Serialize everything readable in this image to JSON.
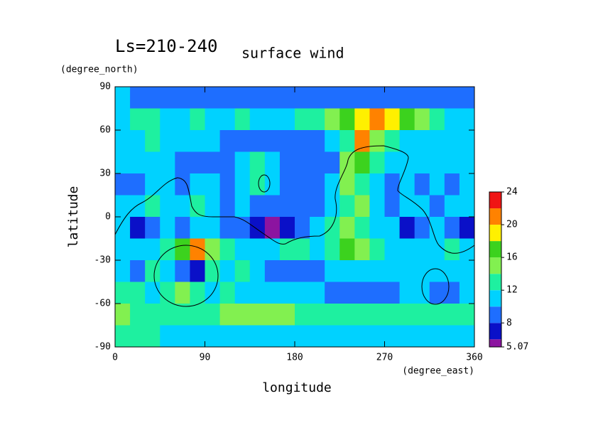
{
  "chart_data": {
    "type": "contourf",
    "title": "Ls=210-240",
    "subtitle": "surface wind",
    "xlabel": "longitude",
    "ylabel": "latitude",
    "x_unit": "(degree_east)",
    "y_unit": "(degree_north)",
    "xlim": [
      0,
      360
    ],
    "ylim": [
      -90,
      90
    ],
    "xticks": [
      0,
      90,
      180,
      270,
      360
    ],
    "yticks": [
      90,
      60,
      30,
      0,
      -30,
      -60,
      -90
    ],
    "x": [
      7.5,
      22.5,
      37.5,
      52.5,
      67.5,
      82.5,
      97.5,
      112.5,
      127.5,
      142.5,
      157.5,
      172.5,
      187.5,
      202.5,
      217.5,
      232.5,
      247.5,
      262.5,
      277.5,
      292.5,
      307.5,
      322.5,
      337.5,
      352.5
    ],
    "y": [
      82.5,
      67.5,
      52.5,
      37.5,
      22.5,
      7.5,
      -7.5,
      -22.5,
      -37.5,
      -52.5,
      -67.5,
      -82.5
    ],
    "z": [
      [
        11,
        9,
        9,
        9,
        9,
        9,
        9,
        9,
        9,
        9,
        9,
        9,
        9,
        9,
        9,
        9,
        9,
        9,
        9,
        9,
        9,
        9,
        9,
        9
      ],
      [
        11,
        13,
        13,
        11,
        11,
        13,
        11,
        11,
        13,
        11,
        11,
        11,
        13,
        13,
        15,
        17,
        19,
        21,
        19,
        17,
        15,
        13,
        11,
        11
      ],
      [
        11,
        11,
        13,
        11,
        11,
        11,
        11,
        9,
        9,
        9,
        9,
        9,
        9,
        9,
        11,
        13,
        21,
        15,
        13,
        11,
        11,
        11,
        11,
        11
      ],
      [
        11,
        11,
        11,
        11,
        9,
        9,
        9,
        9,
        11,
        13,
        11,
        9,
        9,
        9,
        9,
        15,
        17,
        13,
        11,
        11,
        11,
        11,
        11,
        11
      ],
      [
        9,
        9,
        11,
        11,
        9,
        11,
        11,
        9,
        11,
        13,
        11,
        9,
        9,
        9,
        11,
        15,
        13,
        11,
        9,
        11,
        9,
        11,
        9,
        11
      ],
      [
        11,
        11,
        13,
        11,
        11,
        13,
        11,
        9,
        11,
        9,
        9,
        9,
        9,
        9,
        11,
        13,
        15,
        11,
        9,
        11,
        11,
        9,
        11,
        11
      ],
      [
        11,
        7,
        9,
        11,
        9,
        11,
        11,
        9,
        9,
        7,
        5.5,
        7,
        9,
        11,
        13,
        15,
        13,
        11,
        11,
        7,
        9,
        11,
        9,
        7
      ],
      [
        11,
        11,
        11,
        13,
        17,
        21,
        15,
        13,
        11,
        11,
        11,
        13,
        13,
        11,
        13,
        17,
        15,
        13,
        11,
        11,
        11,
        11,
        13,
        11
      ],
      [
        11,
        9,
        13,
        11,
        9,
        7,
        13,
        11,
        13,
        11,
        9,
        9,
        9,
        9,
        11,
        11,
        11,
        11,
        11,
        11,
        11,
        11,
        11,
        11
      ],
      [
        13,
        13,
        11,
        13,
        15,
        13,
        11,
        13,
        11,
        11,
        11,
        11,
        11,
        11,
        9,
        9,
        9,
        9,
        9,
        11,
        11,
        9,
        9,
        11
      ],
      [
        15,
        13,
        13,
        13,
        13,
        13,
        13,
        15,
        15,
        15,
        15,
        15,
        13,
        13,
        13,
        13,
        13,
        13,
        13,
        13,
        13,
        13,
        13,
        13
      ],
      [
        13,
        13,
        13,
        11,
        11,
        11,
        11,
        11,
        11,
        11,
        11,
        11,
        11,
        11,
        11,
        11,
        11,
        11,
        11,
        11,
        11,
        11,
        11,
        11
      ]
    ],
    "levels": [
      5.07,
      6,
      8,
      10,
      12,
      14,
      16,
      18,
      20,
      22,
      24
    ],
    "colors": [
      "#8c14a0",
      "#0a10c8",
      "#1e6eff",
      "#00d2ff",
      "#1ef0a0",
      "#82f050",
      "#3cd21e",
      "#fff000",
      "#ff8200",
      "#f01414"
    ],
    "colorbar_ticks": [
      24,
      20,
      16,
      12,
      8,
      5.07
    ]
  }
}
